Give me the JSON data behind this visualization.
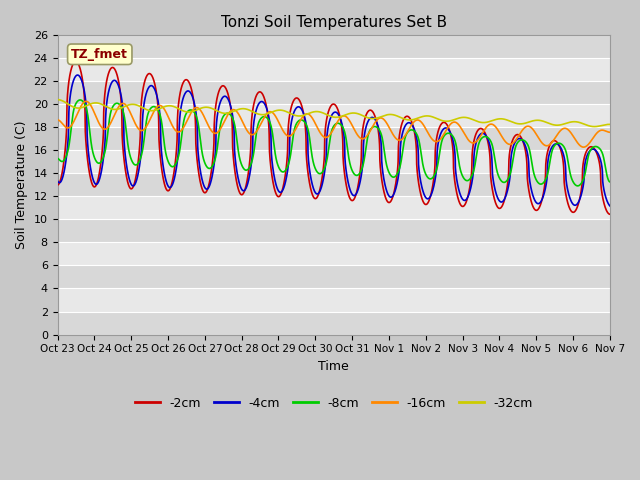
{
  "title": "Tonzi Soil Temperatures Set B",
  "xlabel": "Time",
  "ylabel": "Soil Temperature (C)",
  "ylim": [
    0,
    26
  ],
  "yticks": [
    0,
    2,
    4,
    6,
    8,
    10,
    12,
    14,
    16,
    18,
    20,
    22,
    24,
    26
  ],
  "fig_bg_color": "#c8c8c8",
  "plot_bg_top": "#e0e0e0",
  "plot_bg_bot": "#c8c8c8",
  "grid_color": "#ffffff",
  "annotation_text": "TZ_fmet",
  "annotation_bg": "#ffffcc",
  "annotation_fg": "#8b0000",
  "series": [
    {
      "label": "-2cm",
      "color": "#cc0000",
      "lw": 1.2
    },
    {
      "label": "-4cm",
      "color": "#0000cc",
      "lw": 1.2
    },
    {
      "label": "-8cm",
      "color": "#00cc00",
      "lw": 1.2
    },
    {
      "label": "-16cm",
      "color": "#ff8800",
      "lw": 1.2
    },
    {
      "label": "-32cm",
      "color": "#cccc00",
      "lw": 1.2
    }
  ],
  "n_days": 15,
  "pts_per_day": 240,
  "xtick_labels": [
    "Oct 23",
    "Oct 24",
    "Oct 25",
    "Oct 26",
    "Oct 27",
    "Oct 28",
    "Oct 29",
    "Oct 30",
    "Oct 31",
    "Nov 1",
    "Nov 2",
    "Nov 3",
    "Nov 4",
    "Nov 5",
    "Nov 6",
    "Nov 7"
  ]
}
